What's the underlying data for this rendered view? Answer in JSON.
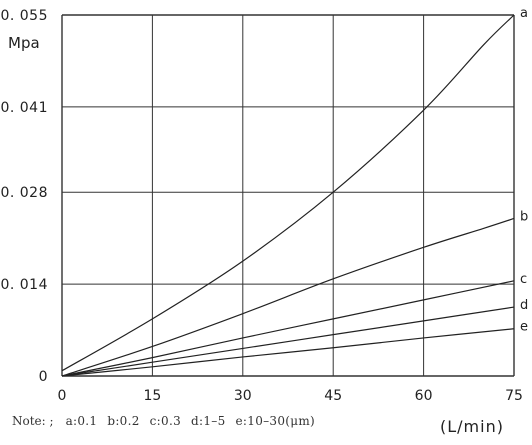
{
  "chart_data": {
    "type": "line",
    "xlabel": "(L/min)",
    "ylabel": "Mpa",
    "xlim": [
      0,
      75
    ],
    "ylim": [
      0,
      0.055
    ],
    "x_ticks": [
      "0",
      "15",
      "30",
      "45",
      "60",
      "75"
    ],
    "y_ticks": [
      "0",
      "0.014",
      "0.028",
      "0.041",
      "0.055"
    ],
    "grid": true,
    "series": [
      {
        "name": "a",
        "x": [
          0,
          15,
          30,
          45,
          60,
          70,
          75
        ],
        "values": [
          0.0008,
          0.0087,
          0.0175,
          0.028,
          0.0405,
          0.0505,
          0.055
        ]
      },
      {
        "name": "b",
        "x": [
          0,
          15,
          30,
          45,
          60,
          70,
          75
        ],
        "values": [
          0,
          0.0045,
          0.0095,
          0.0148,
          0.0196,
          0.0225,
          0.024
        ]
      },
      {
        "name": "c",
        "x": [
          0,
          15,
          30,
          45,
          60,
          75
        ],
        "values": [
          0,
          0.0028,
          0.0058,
          0.0087,
          0.0116,
          0.0145
        ]
      },
      {
        "name": "d",
        "x": [
          0,
          15,
          30,
          45,
          60,
          75
        ],
        "values": [
          0,
          0.0021,
          0.0042,
          0.0063,
          0.0084,
          0.0105
        ]
      },
      {
        "name": "e",
        "x": [
          0,
          15,
          30,
          45,
          60,
          75
        ],
        "values": [
          0,
          0.0014,
          0.0029,
          0.0043,
          0.0058,
          0.0072
        ]
      }
    ],
    "series_labels": [
      "a",
      "b",
      "c",
      "d",
      "e"
    ]
  },
  "note": {
    "label": "Note: ;",
    "items": [
      "a:0.1",
      "b:0.2",
      "c:0.3",
      "d:1–5",
      "e:10–30(μm)"
    ]
  }
}
